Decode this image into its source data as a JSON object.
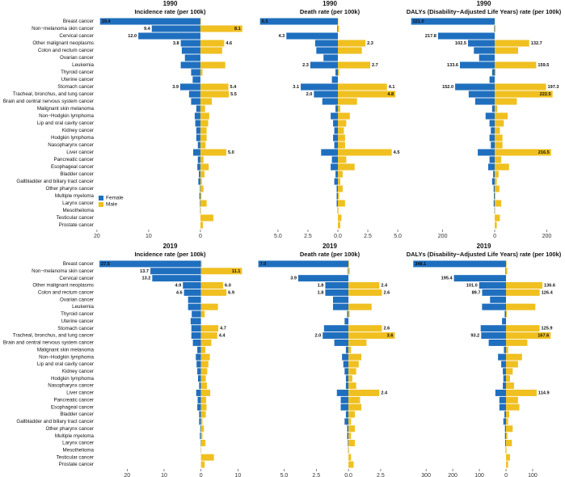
{
  "chart_data": [
    {
      "type": "butterfly",
      "title": "1990",
      "subtitle": "Incidence rate (per 100k)",
      "categories": [
        "Breast cancer",
        "Non−melanoma skin cancer",
        "Cervical cancer",
        "Other malignant neoplasms",
        "Colon and rectum cancer",
        "Ovarian cancer",
        "Leukemia",
        "Thyroid cancer",
        "Uterine cancer",
        "Stomach cancer",
        "Tracheal, bronchus, and lung cancer",
        "Brain and central nervous system cancer",
        "Malignant skin melanoma",
        "Non−Hodgkin lymphoma",
        "Lip and oral cavity cancer",
        "Kidney cancer",
        "Hodgkin lymphoma",
        "Nasopharynx cancer",
        "Liver cancer",
        "Pancreatic cancer",
        "Esophageal cancer",
        "Bladder cancer",
        "Gallbladder and biliary tract cancer",
        "Other pharynx cancer",
        "Multiple myeloma",
        "Larynx cancer",
        "Mesothelioma",
        "Testicular cancer",
        "Prostate cancer"
      ],
      "xlim": [
        -20.3,
        8.6
      ],
      "xticks": [
        {
          "value": -20,
          "label": "20"
        },
        {
          "value": -10,
          "label": "10"
        },
        0
      ],
      "series": [
        {
          "name": "Female",
          "color": "#1f6fbf",
          "values": [
            19.4,
            9.4,
            12.0,
            3.8,
            3.6,
            3.0,
            3.8,
            1.8,
            1.5,
            3.9,
            2.2,
            1.8,
            0.8,
            1.1,
            1.0,
            0.8,
            0.8,
            0.5,
            1.4,
            0.5,
            0.6,
            0.3,
            0.4,
            0.1,
            0.2,
            0.1,
            0.05,
            null,
            null
          ],
          "value_labels": [
            "19.4",
            "9.4",
            "12.0",
            "3.8",
            null,
            null,
            null,
            null,
            null,
            "3.9",
            null,
            null,
            null,
            null,
            null,
            null,
            null,
            null,
            null,
            null,
            null,
            null,
            null,
            null,
            null,
            null,
            null,
            null,
            null
          ]
        },
        {
          "name": "Male",
          "color": "#f0c020",
          "values": [
            0.1,
            8.1,
            null,
            4.6,
            4.2,
            null,
            4.8,
            0.4,
            null,
            5.4,
            5.5,
            2.2,
            0.9,
            1.7,
            1.5,
            1.2,
            1.2,
            1.0,
            5.0,
            0.6,
            1.6,
            0.8,
            0.3,
            0.6,
            0.2,
            1.2,
            0.1,
            2.5,
            0.5
          ],
          "value_labels": [
            null,
            "8.1",
            null,
            "4.6",
            null,
            null,
            null,
            null,
            null,
            "5.4",
            "5.5",
            null,
            null,
            null,
            null,
            null,
            null,
            null,
            "5.0",
            null,
            null,
            null,
            null,
            null,
            null,
            null,
            null,
            null,
            null
          ]
        }
      ]
    },
    {
      "type": "butterfly",
      "title": "1990",
      "subtitle": "Death rate (per 100k)",
      "xlim": [
        -6.75,
        5.4
      ],
      "xticks": [
        {
          "value": -5,
          "label": "5.0"
        },
        {
          "value": -2.5,
          "label": "2.5"
        },
        {
          "value": 0,
          "label": "0.0"
        },
        {
          "value": 2.5,
          "label": "2.5"
        },
        {
          "value": 5,
          "label": "5.0"
        }
      ],
      "series": [
        {
          "color": "#1f6fbf",
          "values": [
            6.5,
            0.05,
            4.3,
            1.9,
            1.8,
            1.2,
            2.3,
            0.2,
            0.5,
            3.1,
            2.0,
            1.3,
            0.2,
            0.6,
            0.4,
            0.3,
            0.4,
            0.3,
            1.4,
            0.5,
            0.6,
            0.2,
            0.3,
            0.1,
            0.1,
            0.1,
            0.02,
            null,
            null
          ],
          "value_labels": [
            "6.5",
            null,
            "4.3",
            null,
            null,
            null,
            "2.3",
            null,
            null,
            "3.1",
            "2.0",
            null,
            null,
            null,
            null,
            null,
            null,
            null,
            null,
            null,
            null,
            null,
            null,
            null,
            null,
            null,
            null,
            null,
            null
          ]
        },
        {
          "color": "#f0c020",
          "values": [
            0.03,
            0.1,
            null,
            2.3,
            2.0,
            null,
            2.7,
            0.1,
            null,
            4.1,
            4.8,
            1.6,
            0.2,
            1.0,
            0.7,
            0.5,
            0.6,
            0.6,
            4.5,
            0.7,
            1.4,
            0.4,
            0.2,
            0.4,
            0.1,
            0.6,
            0.05,
            0.3,
            0.2
          ],
          "value_labels": [
            null,
            null,
            null,
            "2.3",
            null,
            null,
            "2.7",
            null,
            null,
            "4.1",
            "4.8",
            null,
            null,
            null,
            null,
            null,
            null,
            null,
            "4.5",
            null,
            null,
            null,
            null,
            null,
            null,
            null,
            null,
            null,
            null
          ]
        }
      ]
    },
    {
      "type": "butterfly",
      "title": "1990",
      "subtitle": "DALYs (Disability−Adjusted Life Years) rate (per 100k)",
      "xlim": [
        -320,
        236
      ],
      "xticks": [
        {
          "value": -200,
          "label": "200"
        },
        0,
        200
      ],
      "series": [
        {
          "color": "#1f6fbf",
          "values": [
            321.0,
            2,
            217.8,
            102.5,
            80,
            60,
            133.6,
            10,
            20,
            152.0,
            100,
            75,
            10,
            35,
            20,
            15,
            20,
            15,
            65,
            20,
            25,
            6,
            10,
            4,
            3,
            4,
            1,
            null,
            null
          ],
          "value_labels": [
            "321.0",
            null,
            "217.8",
            "102.5",
            null,
            null,
            "133.6",
            null,
            null,
            "152.0",
            null,
            null,
            null,
            null,
            null,
            null,
            null,
            null,
            null,
            null,
            null,
            null,
            null,
            null,
            null,
            null,
            null,
            null,
            null
          ]
        },
        {
          "color": "#f0c020",
          "values": [
            1,
            4,
            null,
            132.7,
            90,
            null,
            159.5,
            4,
            null,
            197.3,
            222.5,
            85,
            10,
            50,
            35,
            20,
            30,
            30,
            216.5,
            25,
            55,
            15,
            8,
            18,
            3,
            25,
            2,
            20,
            8
          ],
          "value_labels": [
            null,
            null,
            null,
            "132.7",
            null,
            null,
            "159.5",
            null,
            null,
            "197.3",
            "222.5",
            null,
            null,
            null,
            null,
            null,
            null,
            null,
            "216.5",
            null,
            null,
            null,
            null,
            null,
            null,
            null,
            null,
            null,
            null
          ]
        }
      ]
    },
    {
      "type": "butterfly",
      "title": "2019",
      "subtitle": "Incidence rate (per 100k)",
      "categories": [
        "Breast cancer",
        "Non−melanoma skin cancer",
        "Cervical cancer",
        "Other malignant neoplasms",
        "Colon and rectum cancer",
        "Ovarian cancer",
        "Leukemia",
        "Thyroid cancer",
        "Uterine cancer",
        "Stomach cancer",
        "Tracheal, bronchus, and lung cancer",
        "Brain and central nervous system cancer",
        "Malignant skin melanoma",
        "Non−Hodgkin lymphoma",
        "Lip and oral cavity cancer",
        "Kidney cancer",
        "Hodgkin lymphoma",
        "Nasopharynx cancer",
        "Liver cancer",
        "Pancreatic cancer",
        "Esophageal cancer",
        "Bladder cancer",
        "Gallbladder and biliary tract cancer",
        "Other pharynx cancer",
        "Multiple myeloma",
        "Larynx cancer",
        "Mesothelioma",
        "Testicular cancer",
        "Prostate cancer"
      ],
      "xlim": [
        -28.6,
        11.9
      ],
      "xticks": [
        {
          "value": -20,
          "label": "20"
        },
        {
          "value": -10,
          "label": "10"
        },
        0,
        10
      ],
      "series": [
        {
          "color": "#1f6fbf",
          "values": [
            27.5,
            13.7,
            13.2,
            4.9,
            4.6,
            3.5,
            3.5,
            2.5,
            2.8,
            2.6,
            2.6,
            2.2,
            1.0,
            1.4,
            1.2,
            1.0,
            0.8,
            0.5,
            1.3,
            0.9,
            1.0,
            0.5,
            0.5,
            0.2,
            0.3,
            0.1,
            0.05,
            null,
            null
          ],
          "value_labels": [
            "27.5",
            "13.7",
            "13.2",
            "4.9",
            "4.6",
            null,
            null,
            null,
            null,
            null,
            null,
            null,
            null,
            null,
            null,
            null,
            null,
            null,
            null,
            null,
            null,
            null,
            null,
            null,
            null,
            null,
            null,
            null,
            null
          ]
        },
        {
          "color": "#f0c020",
          "values": [
            0.2,
            11.1,
            null,
            6.0,
            6.9,
            null,
            4.6,
            1.0,
            null,
            4.7,
            4.4,
            2.8,
            1.2,
            2.4,
            2.0,
            1.7,
            1.3,
            1.6,
            2.5,
            1.4,
            1.5,
            1.3,
            0.4,
            0.8,
            0.4,
            1.2,
            0.1,
            3.5,
            1.0
          ],
          "value_labels": [
            null,
            "11.1",
            null,
            "6.0",
            "6.9",
            null,
            null,
            null,
            null,
            "4.7",
            "4.4",
            null,
            null,
            null,
            null,
            null,
            null,
            null,
            null,
            null,
            null,
            null,
            null,
            null,
            null,
            null,
            null,
            null,
            null
          ]
        }
      ]
    },
    {
      "type": "butterfly",
      "title": "2019",
      "subtitle": "Death rate (per 100k)",
      "xlim": [
        -7.1,
        4.2
      ],
      "xticks": [
        {
          "value": -5,
          "label": "5.0"
        },
        {
          "value": -2.5,
          "label": "2.5"
        },
        {
          "value": 0,
          "label": "0.0"
        },
        {
          "value": 2.5,
          "label": "2.5"
        }
      ],
      "series": [
        {
          "color": "#1f6fbf",
          "values": [
            7.0,
            0.05,
            3.9,
            1.8,
            1.8,
            1.2,
            1.2,
            0.1,
            0.3,
            1.9,
            2.0,
            1.1,
            0.2,
            0.5,
            0.4,
            0.3,
            0.2,
            0.2,
            0.9,
            0.6,
            0.6,
            0.2,
            0.3,
            0.1,
            0.1,
            0.05,
            0.02,
            null,
            null
          ],
          "value_labels": [
            "7.0",
            null,
            "3.9",
            "1.8",
            "1.8",
            null,
            null,
            null,
            null,
            null,
            "2.0",
            null,
            null,
            null,
            null,
            null,
            null,
            null,
            null,
            null,
            null,
            null,
            null,
            null,
            null,
            null,
            null,
            null,
            null
          ]
        },
        {
          "color": "#f0c020",
          "values": [
            0.05,
            0.1,
            null,
            2.4,
            2.6,
            null,
            1.8,
            0.1,
            null,
            2.6,
            3.6,
            1.4,
            0.2,
            1.0,
            0.8,
            0.6,
            0.3,
            0.6,
            2.4,
            0.9,
            1.0,
            0.5,
            0.2,
            0.5,
            0.2,
            0.5,
            0.05,
            0.2,
            0.4
          ],
          "value_labels": [
            null,
            null,
            null,
            "2.4",
            "2.6",
            null,
            null,
            null,
            null,
            "2.6",
            "3.6",
            null,
            null,
            null,
            null,
            null,
            null,
            null,
            "2.4",
            null,
            null,
            null,
            null,
            null,
            null,
            null,
            null,
            null,
            null
          ]
        }
      ]
    },
    {
      "type": "butterfly",
      "title": "2019",
      "subtitle": "DALYs (Disability−Adjusted Life Years) rate (per 100k)",
      "xlim": [
        -355,
        188
      ],
      "xticks": [
        {
          "value": -300,
          "label": "300"
        },
        {
          "value": -200,
          "label": "200"
        },
        {
          "value": -100,
          "label": "100"
        },
        0,
        100
      ],
      "series": [
        {
          "color": "#1f6fbf",
          "values": [
            348.1,
            2,
            195.4,
            101.0,
            89.7,
            60,
            90,
            5,
            15,
            95,
            93.2,
            65,
            8,
            30,
            18,
            12,
            10,
            12,
            40,
            25,
            25,
            6,
            10,
            4,
            4,
            3,
            1,
            null,
            null
          ],
          "value_labels": [
            "348.1",
            null,
            "195.4",
            "101.0",
            "89.7",
            null,
            null,
            null,
            null,
            null,
            "93.2",
            null,
            null,
            null,
            null,
            null,
            null,
            null,
            null,
            null,
            null,
            null,
            null,
            null,
            null,
            null,
            null,
            null,
            null
          ]
        },
        {
          "color": "#f0c020",
          "values": [
            2,
            5,
            null,
            136.6,
            126.4,
            null,
            110,
            3,
            null,
            125.9,
            167.6,
            80,
            8,
            60,
            45,
            25,
            15,
            30,
            114.9,
            45,
            50,
            12,
            8,
            25,
            5,
            22,
            2,
            15,
            8
          ],
          "value_labels": [
            null,
            null,
            null,
            "136.6",
            "126.4",
            null,
            null,
            null,
            null,
            "125.9",
            "167.6",
            null,
            null,
            null,
            null,
            null,
            null,
            null,
            "114.9",
            null,
            null,
            null,
            null,
            null,
            null,
            null,
            null,
            null,
            null
          ]
        }
      ]
    }
  ]
}
